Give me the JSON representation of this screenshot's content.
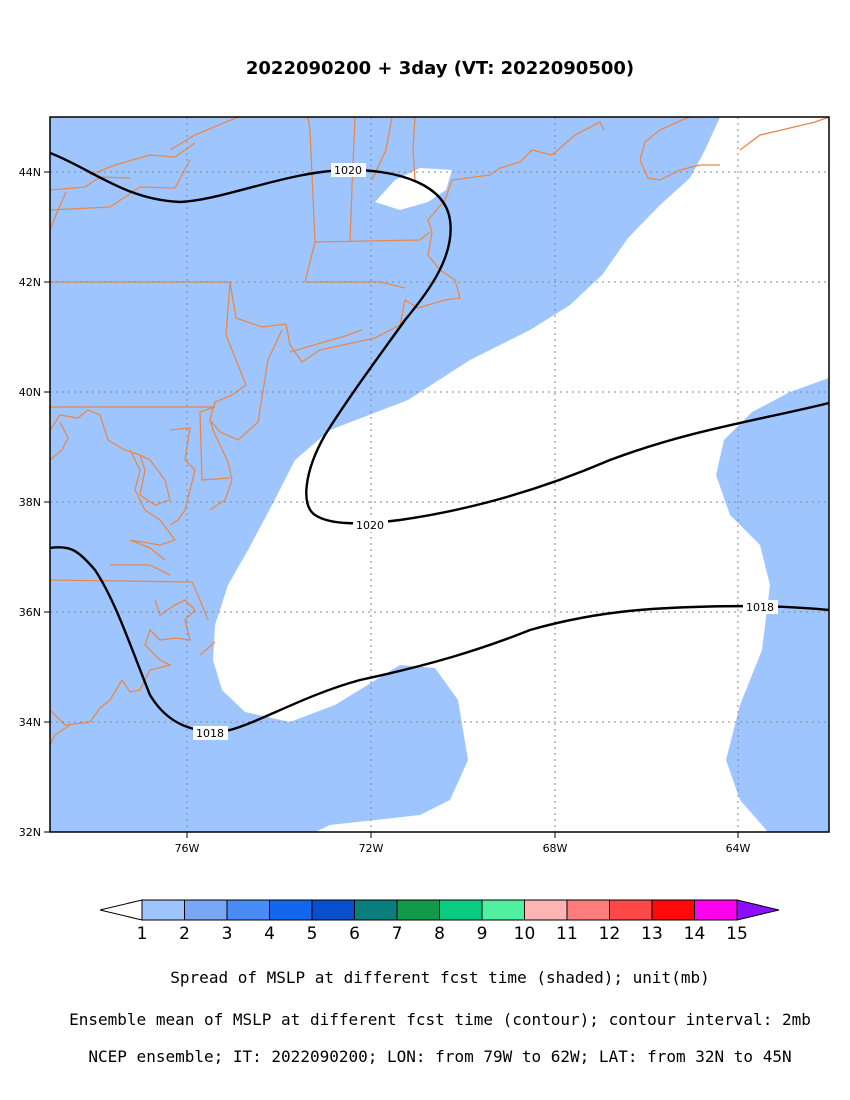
{
  "title": "2022090200 + 3day (VT: 2022090500)",
  "axes": {
    "lat_labels": [
      "44N",
      "42N",
      "40N",
      "38N",
      "36N",
      "34N",
      "32N"
    ],
    "lon_labels": [
      "76W",
      "72W",
      "68W",
      "64W"
    ]
  },
  "contours": [
    {
      "value": 1020,
      "label": "1020"
    },
    {
      "value": 1018,
      "label": "1018"
    }
  ],
  "colorbar": {
    "colors": [
      "#9fc5ff",
      "#78a8f5",
      "#4a8cf5",
      "#1466f0",
      "#0a4ed0",
      "#0a7d7d",
      "#109a4a",
      "#0acb82",
      "#50f0a0",
      "#ffb4b4",
      "#ff7c7c",
      "#ff4848",
      "#ff0a0a",
      "#ff00ee",
      "#8a10ff"
    ],
    "labels": [
      "1",
      "2",
      "3",
      "4",
      "5",
      "6",
      "7",
      "8",
      "9",
      "10",
      "11",
      "12",
      "13",
      "14",
      "15"
    ]
  },
  "colors": {
    "shading": "#9fc5ff",
    "coastline": "#e8884a",
    "contour": "#000000"
  },
  "captions": {
    "line1": "Spread of MSLP at different fcst time (shaded); unit(mb)",
    "line2": "Ensemble mean of MSLP at different fcst time (contour); contour interval: 2mb",
    "line3": "NCEP ensemble; IT: 2022090200; LON: from 79W to 62W; LAT: from 32N to 45N"
  }
}
